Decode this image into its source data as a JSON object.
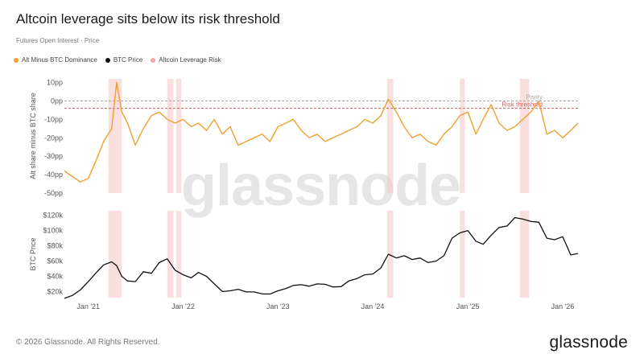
{
  "header": {
    "title": "Altcoin leverage sits below its risk threshold",
    "subtitle": "Futures Open Interest · Price"
  },
  "legend": [
    {
      "label": "Alt Minus BTC Dominance",
      "color": "#f0a030"
    },
    {
      "label": "BTC Price",
      "color": "#111111"
    },
    {
      "label": "Altcoin Leverage Risk",
      "color": "#f2a8a8"
    }
  ],
  "footer": {
    "copyright": "© 2026 Glassnode. All Rights Reserved.",
    "logo": "glassnode",
    "watermark": "glassnode"
  },
  "chart_data": [
    {
      "type": "line",
      "ylabel": "Alt share minus BTC share",
      "yticks": [
        "10pp",
        "0pp",
        "-10pp",
        "-20pp",
        "-30pp",
        "-40pp",
        "-50pp"
      ],
      "ylim": [
        -50,
        12
      ],
      "reference_lines": [
        {
          "label": "Parity",
          "value": 0,
          "color": "#aaaaaa"
        },
        {
          "label": "Risk threshold",
          "value": -4,
          "color": "#d06060"
        }
      ],
      "series": [
        {
          "name": "Alt Minus BTC Dominance",
          "color": "#f0a030",
          "x": [
            "2020-10-01",
            "2020-11-01",
            "2020-12-01",
            "2021-01-01",
            "2021-02-01",
            "2021-03-01",
            "2021-04-01",
            "2021-04-20",
            "2021-05-10",
            "2021-06-01",
            "2021-07-01",
            "2021-08-01",
            "2021-09-01",
            "2021-10-01",
            "2021-11-01",
            "2021-12-01",
            "2022-01-01",
            "2022-02-01",
            "2022-03-01",
            "2022-04-01",
            "2022-05-01",
            "2022-06-01",
            "2022-07-01",
            "2022-08-01",
            "2022-09-01",
            "2022-10-01",
            "2022-11-01",
            "2022-12-01",
            "2023-01-01",
            "2023-02-01",
            "2023-03-01",
            "2023-04-01",
            "2023-05-01",
            "2023-06-01",
            "2023-07-01",
            "2023-08-01",
            "2023-09-01",
            "2023-10-01",
            "2023-11-01",
            "2023-12-01",
            "2024-01-01",
            "2024-02-01",
            "2024-03-01",
            "2024-04-01",
            "2024-05-01",
            "2024-06-01",
            "2024-07-01",
            "2024-08-01",
            "2024-09-01",
            "2024-10-01",
            "2024-11-01",
            "2024-12-01",
            "2025-01-01",
            "2025-02-01",
            "2025-03-01",
            "2025-04-01",
            "2025-05-01",
            "2025-06-01",
            "2025-07-01",
            "2025-08-01",
            "2025-09-01",
            "2025-10-01",
            "2025-11-01",
            "2025-12-01",
            "2026-01-01",
            "2026-02-01",
            "2026-03-01"
          ],
          "y": [
            -38,
            -41,
            -44,
            -42,
            -32,
            -22,
            -15,
            10,
            -6,
            -12,
            -24,
            -15,
            -8,
            -6,
            -10,
            -12,
            -10,
            -14,
            -12,
            -16,
            -10,
            -18,
            -14,
            -24,
            -22,
            -20,
            -18,
            -22,
            -14,
            -12,
            -10,
            -16,
            -20,
            -18,
            -22,
            -20,
            -18,
            -16,
            -14,
            -10,
            -12,
            -8,
            1,
            -6,
            -14,
            -20,
            -18,
            -22,
            -24,
            -18,
            -14,
            -8,
            -6,
            -18,
            -10,
            -2,
            -12,
            -16,
            -14,
            -10,
            -6,
            0,
            -18,
            -16,
            -20,
            -16,
            -12
          ]
        }
      ]
    },
    {
      "type": "line",
      "ylabel": "BTC Price",
      "yticks": [
        "$120k",
        "$100k",
        "$80k",
        "$60k",
        "$40k",
        "$20k"
      ],
      "ylim": [
        12000,
        126000
      ],
      "xticks": [
        "Jan '21",
        "Jan '22",
        "Jan '23",
        "Jan '24",
        "Jan '25",
        "Jan '26"
      ],
      "series": [
        {
          "name": "BTC Price",
          "color": "#111111",
          "x": [
            "2020-10-01",
            "2020-11-01",
            "2020-12-01",
            "2021-01-01",
            "2021-02-01",
            "2021-03-01",
            "2021-04-01",
            "2021-04-20",
            "2021-05-10",
            "2021-06-01",
            "2021-07-01",
            "2021-08-01",
            "2021-09-01",
            "2021-10-01",
            "2021-11-01",
            "2021-12-01",
            "2022-01-01",
            "2022-02-01",
            "2022-03-01",
            "2022-04-01",
            "2022-05-01",
            "2022-06-01",
            "2022-07-01",
            "2022-08-01",
            "2022-09-01",
            "2022-10-01",
            "2022-11-01",
            "2022-12-01",
            "2023-01-01",
            "2023-02-01",
            "2023-03-01",
            "2023-04-01",
            "2023-05-01",
            "2023-06-01",
            "2023-07-01",
            "2023-08-01",
            "2023-09-01",
            "2023-10-01",
            "2023-11-01",
            "2023-12-01",
            "2024-01-01",
            "2024-02-01",
            "2024-03-01",
            "2024-04-01",
            "2024-05-01",
            "2024-06-01",
            "2024-07-01",
            "2024-08-01",
            "2024-09-01",
            "2024-10-01",
            "2024-11-01",
            "2024-12-01",
            "2025-01-01",
            "2025-02-01",
            "2025-03-01",
            "2025-04-01",
            "2025-05-01",
            "2025-06-01",
            "2025-07-01",
            "2025-08-01",
            "2025-09-01",
            "2025-10-01",
            "2025-11-01",
            "2025-12-01",
            "2026-01-01",
            "2026-02-01",
            "2026-03-01"
          ],
          "y": [
            11000,
            15000,
            22000,
            33000,
            45000,
            55000,
            59000,
            54000,
            40000,
            34000,
            33000,
            46000,
            44000,
            58000,
            63000,
            48000,
            42000,
            38000,
            45000,
            40000,
            30000,
            20000,
            21000,
            23000,
            19500,
            19500,
            17000,
            16800,
            21000,
            24000,
            28000,
            29000,
            27000,
            30000,
            29500,
            26000,
            26500,
            34000,
            37000,
            42000,
            43000,
            51000,
            69000,
            64000,
            67000,
            62000,
            64000,
            58000,
            60000,
            67000,
            90000,
            97000,
            100000,
            86000,
            82000,
            94000,
            104000,
            106000,
            117000,
            115000,
            112000,
            111000,
            90000,
            88000,
            92000,
            68000,
            70000
          ]
        }
      ]
    }
  ],
  "risk_periods": [
    [
      "2021-03-20",
      "2021-05-10"
    ],
    [
      "2021-11-01",
      "2021-11-25"
    ],
    [
      "2021-12-05",
      "2021-12-25"
    ],
    [
      "2024-02-25",
      "2024-03-20"
    ],
    [
      "2024-12-01",
      "2024-12-20"
    ],
    [
      "2025-07-20",
      "2025-08-25"
    ]
  ]
}
